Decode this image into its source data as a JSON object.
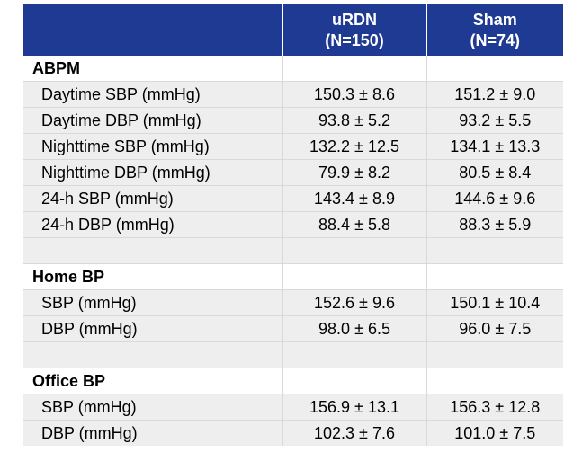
{
  "header": {
    "col0": "",
    "col1_line1": "uRDN",
    "col1_line2": "(N=150)",
    "col2_line1": "Sham",
    "col2_line2": "(N=74)"
  },
  "sections": [
    {
      "title": "ABPM",
      "rows": [
        {
          "label": "Daytime SBP (mmHg)",
          "urdn": "150.3 ± 8.6",
          "sham": "151.2 ± 9.0"
        },
        {
          "label": "Daytime DBP (mmHg)",
          "urdn": "93.8 ± 5.2",
          "sham": "93.2 ± 5.5"
        },
        {
          "label": "Nighttime SBP (mmHg)",
          "urdn": "132.2 ± 12.5",
          "sham": "134.1 ± 13.3"
        },
        {
          "label": "Nighttime DBP (mmHg)",
          "urdn": "79.9 ± 8.2",
          "sham": "80.5 ± 8.4"
        },
        {
          "label": "24-h SBP (mmHg)",
          "urdn": "143.4 ± 8.9",
          "sham": "144.6 ± 9.6"
        },
        {
          "label": "24-h DBP (mmHg)",
          "urdn": "88.4 ± 5.8",
          "sham": "88.3 ± 5.9"
        }
      ]
    },
    {
      "title": "Home BP",
      "rows": [
        {
          "label": "SBP (mmHg)",
          "urdn": "152.6 ± 9.6",
          "sham": "150.1 ± 10.4"
        },
        {
          "label": "DBP (mmHg)",
          "urdn": "98.0 ± 6.5",
          "sham": "96.0 ± 7.5"
        }
      ]
    },
    {
      "title": "Office BP",
      "rows": [
        {
          "label": "SBP (mmHg)",
          "urdn": "156.9 ± 13.1",
          "sham": "156.3 ± 12.8"
        },
        {
          "label": "DBP (mmHg)",
          "urdn": "102.3 ± 7.6",
          "sham": "101.0 ± 7.5"
        }
      ]
    }
  ]
}
